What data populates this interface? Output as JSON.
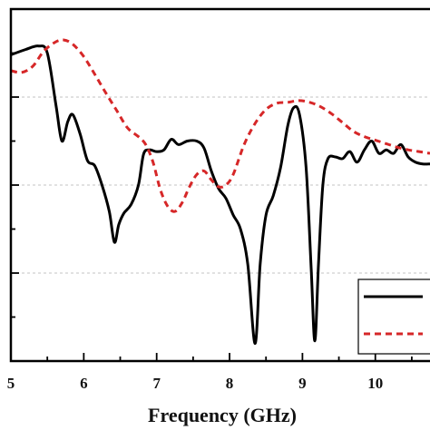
{
  "chart_data": {
    "type": "line",
    "title": "",
    "xlabel": "Frequency (GHz)",
    "ylabel": "",
    "xlim": [
      5,
      10.75
    ],
    "ylim": [
      0,
      400
    ],
    "grid": "horizontal-dashed",
    "legend": "bottom-right",
    "x_ticks": [
      "5",
      "6",
      "7",
      "8",
      "9",
      "10"
    ],
    "series": [
      {
        "style": "solid",
        "color": "#000000",
        "points": [
          [
            5.0,
            348
          ],
          [
            5.2,
            354
          ],
          [
            5.38,
            358
          ],
          [
            5.5,
            350
          ],
          [
            5.62,
            290
          ],
          [
            5.7,
            250
          ],
          [
            5.78,
            272
          ],
          [
            5.85,
            280
          ],
          [
            5.95,
            258
          ],
          [
            6.05,
            228
          ],
          [
            6.15,
            222
          ],
          [
            6.25,
            200
          ],
          [
            6.35,
            170
          ],
          [
            6.42,
            135
          ],
          [
            6.48,
            155
          ],
          [
            6.55,
            168
          ],
          [
            6.65,
            178
          ],
          [
            6.75,
            200
          ],
          [
            6.82,
            235
          ],
          [
            6.9,
            240
          ],
          [
            7.0,
            238
          ],
          [
            7.1,
            240
          ],
          [
            7.2,
            252
          ],
          [
            7.3,
            246
          ],
          [
            7.42,
            250
          ],
          [
            7.55,
            250
          ],
          [
            7.65,
            242
          ],
          [
            7.75,
            216
          ],
          [
            7.85,
            196
          ],
          [
            7.95,
            185
          ],
          [
            8.05,
            166
          ],
          [
            8.15,
            150
          ],
          [
            8.25,
            110
          ],
          [
            8.35,
            20
          ],
          [
            8.42,
            110
          ],
          [
            8.5,
            166
          ],
          [
            8.6,
            188
          ],
          [
            8.7,
            220
          ],
          [
            8.8,
            268
          ],
          [
            8.88,
            288
          ],
          [
            8.96,
            280
          ],
          [
            9.05,
            220
          ],
          [
            9.12,
            105
          ],
          [
            9.17,
            23
          ],
          [
            9.22,
            110
          ],
          [
            9.28,
            200
          ],
          [
            9.35,
            230
          ],
          [
            9.45,
            232
          ],
          [
            9.55,
            230
          ],
          [
            9.65,
            238
          ],
          [
            9.75,
            226
          ],
          [
            9.85,
            240
          ],
          [
            9.95,
            250
          ],
          [
            10.05,
            236
          ],
          [
            10.15,
            240
          ],
          [
            10.25,
            236
          ],
          [
            10.35,
            246
          ],
          [
            10.45,
            232
          ],
          [
            10.55,
            226
          ],
          [
            10.65,
            224
          ],
          [
            10.75,
            224
          ]
        ]
      },
      {
        "style": "dashed",
        "color": "#d62728",
        "points": [
          [
            5.0,
            330
          ],
          [
            5.15,
            328
          ],
          [
            5.3,
            335
          ],
          [
            5.45,
            352
          ],
          [
            5.6,
            362
          ],
          [
            5.72,
            365
          ],
          [
            5.85,
            360
          ],
          [
            6.0,
            346
          ],
          [
            6.15,
            326
          ],
          [
            6.3,
            305
          ],
          [
            6.45,
            285
          ],
          [
            6.6,
            265
          ],
          [
            6.75,
            255
          ],
          [
            6.85,
            246
          ],
          [
            6.95,
            226
          ],
          [
            7.05,
            195
          ],
          [
            7.15,
            176
          ],
          [
            7.25,
            170
          ],
          [
            7.35,
            180
          ],
          [
            7.45,
            198
          ],
          [
            7.55,
            212
          ],
          [
            7.65,
            216
          ],
          [
            7.75,
            206
          ],
          [
            7.85,
            198
          ],
          [
            7.95,
            200
          ],
          [
            8.05,
            212
          ],
          [
            8.2,
            246
          ],
          [
            8.35,
            270
          ],
          [
            8.5,
            286
          ],
          [
            8.65,
            293
          ],
          [
            8.8,
            294
          ],
          [
            8.95,
            296
          ],
          [
            9.1,
            294
          ],
          [
            9.25,
            289
          ],
          [
            9.4,
            281
          ],
          [
            9.55,
            271
          ],
          [
            9.7,
            261
          ],
          [
            9.85,
            255
          ],
          [
            10.0,
            251
          ],
          [
            10.15,
            247
          ],
          [
            10.3,
            243
          ],
          [
            10.45,
            240
          ],
          [
            10.6,
            238
          ],
          [
            10.75,
            236
          ]
        ]
      }
    ]
  }
}
